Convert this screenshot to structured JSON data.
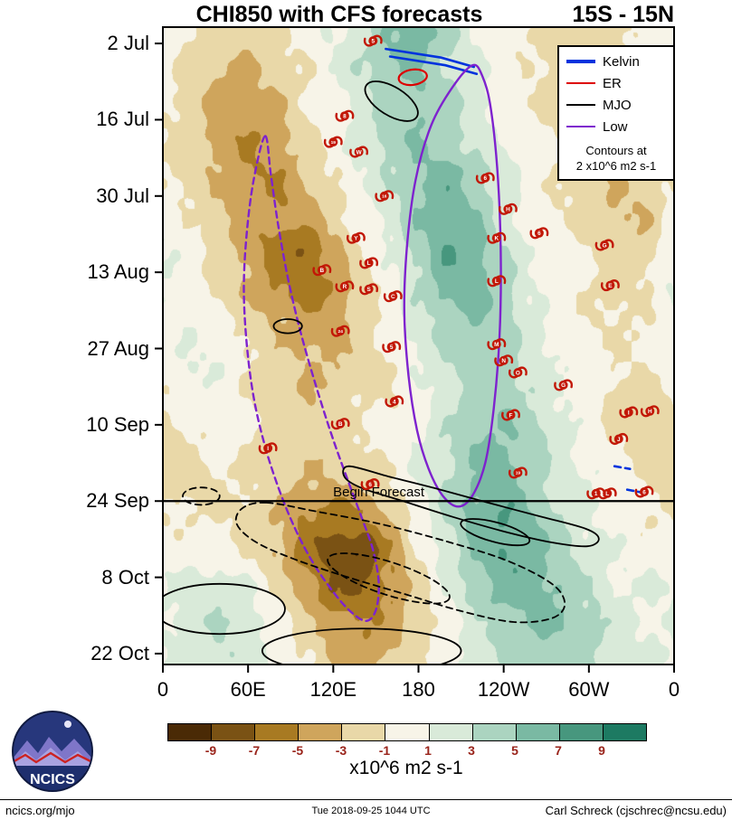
{
  "title": {
    "main": "CHI850 with CFS forecasts",
    "range": "15S - 15N"
  },
  "axes": {
    "y_tick_labels": [
      "2 Jul",
      "16 Jul",
      "30 Jul",
      "13 Aug",
      "27 Aug",
      "10 Sep",
      "24 Sep",
      "8 Oct",
      "22 Oct"
    ],
    "x_tick_labels": [
      "0",
      "60E",
      "120E",
      "180",
      "120W",
      "60W",
      "0"
    ]
  },
  "legend": {
    "items": [
      {
        "label": "Kelvin",
        "color": "#0033dd"
      },
      {
        "label": "ER",
        "color": "#dd0000"
      },
      {
        "label": "MJO",
        "color": "#000000"
      },
      {
        "label": "Low",
        "color": "#7e22ce"
      }
    ],
    "note_line1": "Contours at",
    "note_line2": "2 x10^6 m2 s-1"
  },
  "colorbar": {
    "tick_labels": [
      "-9",
      "-7",
      "-5",
      "-3",
      "-1",
      "1",
      "3",
      "5",
      "7",
      "9"
    ],
    "tick_color": "#99231a",
    "colors": [
      "#4a2a05",
      "#7a5214",
      "#a87a22",
      "#cfa55c",
      "#e9d8a8",
      "#f7f4e8",
      "#d9ead9",
      "#abd4c0",
      "#7ab9a3",
      "#47977e",
      "#1d7a62"
    ],
    "unit_label": "x10^6 m2 s-1"
  },
  "annotations": {
    "begin_forecast_label": "Begin Forecast"
  },
  "footer": {
    "left": "ncics.org/mjo",
    "center": "Tue 2018-09-25 1044 UTC",
    "right": "Carl Schreck (cjschrec@ncsu.edu)"
  },
  "logo": {
    "name": "NCICS"
  },
  "chart_data": {
    "type": "heatmap",
    "title": "CHI850 with CFS forecasts",
    "latitude_band": "15S - 15N",
    "units": "x10^6 m2 s-1",
    "contour_interval_note": "Contours at 2 x10^6 m2 s-1",
    "levels": [
      -9,
      -7,
      -5,
      -3,
      -1,
      1,
      3,
      5,
      7,
      9
    ],
    "x_axis": {
      "label": "longitude",
      "tick_labels": [
        "0",
        "60E",
        "120E",
        "180",
        "120W",
        "60W",
        "0"
      ],
      "tick_lons": [
        0,
        60,
        120,
        180,
        240,
        300,
        360
      ],
      "range_deg": [
        0,
        360
      ]
    },
    "y_axis": {
      "label": "date",
      "tick_labels": [
        "2 Jul",
        "16 Jul",
        "30 Jul",
        "13 Aug",
        "27 Aug",
        "10 Sep",
        "24 Sep",
        "8 Oct",
        "22 Oct"
      ],
      "tick_days": [
        3,
        17,
        31,
        45,
        59,
        73,
        87,
        101,
        115
      ],
      "total_days": 117
    },
    "begin_forecast_day": 87,
    "field": {
      "lon0": 0,
      "dlon": 20,
      "ncols": 19,
      "nrows": 18,
      "values": [
        [
          0,
          -1,
          -2,
          -2,
          -1,
          0,
          1,
          2,
          5,
          6,
          4,
          1,
          0,
          -1,
          -2,
          -2,
          -1,
          -1,
          0
        ],
        [
          0,
          -2,
          -3,
          -3,
          -2,
          -1,
          1,
          3,
          5,
          5,
          3,
          1,
          0,
          -1,
          -2,
          -2,
          -1,
          0,
          0
        ],
        [
          -1,
          -2,
          -4,
          -4,
          -3,
          -1,
          0,
          2,
          4,
          5,
          4,
          2,
          0,
          -1,
          -2,
          -3,
          -2,
          -1,
          -1
        ],
        [
          -1,
          -2,
          -4,
          -5,
          -4,
          -2,
          0,
          2,
          4,
          5,
          4,
          2,
          1,
          0,
          -1,
          -3,
          -3,
          -2,
          -1
        ],
        [
          -1,
          -2,
          -3,
          -5,
          -5,
          -3,
          -1,
          1,
          3,
          5,
          6,
          4,
          2,
          0,
          -1,
          -2,
          -3,
          -2,
          -1
        ],
        [
          0,
          -1,
          -3,
          -4,
          -5,
          -4,
          -2,
          0,
          2,
          5,
          7,
          5,
          2,
          0,
          -1,
          -2,
          -3,
          -3,
          0
        ],
        [
          1,
          0,
          -2,
          -4,
          -6,
          -7,
          -4,
          -1,
          1,
          4,
          7,
          6,
          3,
          1,
          0,
          -1,
          -2,
          -2,
          1
        ],
        [
          1,
          0,
          -2,
          -3,
          -5,
          -6,
          -5,
          -2,
          0,
          3,
          6,
          6,
          4,
          1,
          0,
          -1,
          -2,
          -1,
          1
        ],
        [
          0,
          1,
          0,
          -2,
          -3,
          -4,
          -4,
          -2,
          0,
          2,
          4,
          5,
          4,
          2,
          0,
          -1,
          -1,
          -1,
          0
        ],
        [
          0,
          1,
          1,
          -1,
          -2,
          -3,
          -3,
          -2,
          -1,
          1,
          3,
          4,
          4,
          2,
          1,
          0,
          -1,
          -1,
          0
        ],
        [
          -1,
          0,
          0,
          -1,
          -2,
          -3,
          -2,
          -1,
          -1,
          0,
          2,
          4,
          5,
          3,
          1,
          0,
          -2,
          -2,
          -1
        ],
        [
          -2,
          -1,
          0,
          -1,
          -2,
          -2,
          -2,
          -1,
          0,
          1,
          3,
          5,
          5,
          4,
          2,
          0,
          -1,
          -2,
          -2
        ],
        [
          -2,
          -2,
          -1,
          -1,
          -2,
          -3,
          -3,
          -2,
          -1,
          1,
          3,
          5,
          6,
          4,
          2,
          1,
          0,
          -1,
          -2
        ],
        [
          -1,
          -1,
          -1,
          -2,
          -3,
          -5,
          -6,
          -5,
          -3,
          0,
          3,
          6,
          7,
          5,
          3,
          1,
          0,
          -1,
          -1
        ],
        [
          0,
          0,
          0,
          -1,
          -3,
          -6,
          -8,
          -9,
          -5,
          -1,
          2,
          5,
          7,
          6,
          4,
          2,
          1,
          0,
          0
        ],
        [
          1,
          2,
          2,
          1,
          -1,
          -4,
          -7,
          -7,
          -5,
          -2,
          1,
          4,
          6,
          6,
          5,
          3,
          1,
          1,
          1
        ],
        [
          1,
          2,
          3,
          2,
          0,
          -2,
          -4,
          -5,
          -4,
          -2,
          0,
          2,
          4,
          5,
          5,
          4,
          2,
          1,
          1
        ],
        [
          1,
          2,
          3,
          2,
          1,
          -1,
          -3,
          -4,
          -3,
          -1,
          0,
          2,
          3,
          4,
          4,
          3,
          2,
          1,
          1
        ]
      ]
    },
    "contours": [
      {
        "series": "kelvin",
        "shape": "line",
        "dashed": false,
        "points": [
          [
            157,
            4.0
          ],
          [
            196,
            5.6
          ],
          [
            219,
            7.3
          ]
        ]
      },
      {
        "series": "kelvin",
        "shape": "line",
        "dashed": false,
        "points": [
          [
            160,
            5.4
          ],
          [
            199,
            7.0
          ],
          [
            221,
            8.6
          ]
        ]
      },
      {
        "series": "kelvin",
        "shape": "line",
        "dashed": true,
        "points": [
          [
            318,
            80.6
          ],
          [
            329,
            81.1
          ]
        ]
      },
      {
        "series": "kelvin",
        "shape": "line",
        "dashed": true,
        "points": [
          [
            327,
            84.9
          ],
          [
            339,
            85.5
          ]
        ]
      },
      {
        "series": "er",
        "shape": "ellipse",
        "lon": 176,
        "day": 9.2,
        "rx_deg": 10,
        "ry_days": 1.4,
        "rot": -8,
        "dashed": false
      },
      {
        "series": "low",
        "shape": "polygon",
        "dashed": false,
        "points": [
          [
            218,
            7
          ],
          [
            204,
            11
          ],
          [
            189,
            18
          ],
          [
            178,
            28
          ],
          [
            172,
            40
          ],
          [
            170,
            52
          ],
          [
            173,
            64
          ],
          [
            179,
            74
          ],
          [
            187,
            81
          ],
          [
            197,
            86
          ],
          [
            208,
            88
          ],
          [
            218,
            86
          ],
          [
            227,
            80
          ],
          [
            233,
            70
          ],
          [
            237,
            57
          ],
          [
            238,
            43
          ],
          [
            236,
            28
          ],
          [
            231,
            15
          ],
          [
            225,
            9
          ]
        ]
      },
      {
        "series": "low",
        "shape": "polygon",
        "dashed": true,
        "points": [
          [
            72,
            20
          ],
          [
            64,
            28
          ],
          [
            59,
            38
          ],
          [
            57,
            48
          ],
          [
            59,
            58
          ],
          [
            64,
            68
          ],
          [
            72,
            77
          ],
          [
            82,
            85
          ],
          [
            93,
            92
          ],
          [
            105,
            98
          ],
          [
            118,
            103
          ],
          [
            131,
            107
          ],
          [
            143,
            109
          ],
          [
            150,
            107
          ],
          [
            152,
            102
          ],
          [
            148,
            96
          ],
          [
            140,
            90
          ],
          [
            130,
            83
          ],
          [
            119,
            75
          ],
          [
            108,
            66
          ],
          [
            97,
            56
          ],
          [
            88,
            46
          ],
          [
            81,
            36
          ],
          [
            76,
            27
          ]
        ]
      },
      {
        "series": "mjo",
        "shape": "ellipse",
        "lon": 161,
        "day": 13.6,
        "rx_deg": 21,
        "ry_days": 2.6,
        "rot": 32,
        "dashed": false
      },
      {
        "series": "mjo",
        "shape": "ellipse",
        "lon": 88,
        "day": 54.9,
        "rx_deg": 10,
        "ry_days": 1.3,
        "rot": 0,
        "dashed": false
      },
      {
        "series": "mjo",
        "shape": "ellipse",
        "lon": 27,
        "day": 86.1,
        "rx_deg": 13,
        "ry_days": 1.6,
        "rot": 0,
        "dashed": true
      },
      {
        "series": "mjo",
        "shape": "polygon",
        "dashed": false,
        "points": [
          [
            131,
            80.6
          ],
          [
            159,
            82.5
          ],
          [
            191,
            84.6
          ],
          [
            229,
            87.3
          ],
          [
            267,
            89.9
          ],
          [
            298,
            92.1
          ],
          [
            307,
            93.9
          ],
          [
            299,
            95.3
          ],
          [
            274,
            94.6
          ],
          [
            242,
            92.7
          ],
          [
            204,
            89.9
          ],
          [
            169,
            87.0
          ],
          [
            140,
            84.6
          ],
          [
            128,
            82.6
          ]
        ]
      },
      {
        "series": "mjo",
        "shape": "ellipse",
        "lon": 234,
        "day": 92.7,
        "rx_deg": 25,
        "ry_days": 1.8,
        "rot": 15,
        "dashed": false
      },
      {
        "series": "mjo",
        "shape": "polygon",
        "dashed": true,
        "points": [
          [
            73,
            87.3
          ],
          [
            108,
            88.9
          ],
          [
            153,
            91.2
          ],
          [
            197,
            94.2
          ],
          [
            242,
            97.9
          ],
          [
            274,
            102.2
          ],
          [
            283,
            105.9
          ],
          [
            274,
            108.5
          ],
          [
            247,
            109.2
          ],
          [
            210,
            107.2
          ],
          [
            172,
            104.2
          ],
          [
            133,
            101.2
          ],
          [
            95,
            97.9
          ],
          [
            66,
            94.6
          ],
          [
            52,
            91.2
          ],
          [
            56,
            88.3
          ]
        ]
      },
      {
        "series": "mjo",
        "shape": "ellipse",
        "lon": 159,
        "day": 101.2,
        "rx_deg": 45,
        "ry_days": 3.0,
        "rot": 18,
        "dashed": true
      },
      {
        "series": "mjo",
        "shape": "ellipse",
        "lon": 40,
        "day": 106.8,
        "rx_deg": 46,
        "ry_days": 4.6,
        "rot": 0,
        "dashed": false
      },
      {
        "series": "mjo",
        "shape": "ellipse",
        "lon": 140,
        "day": 114.5,
        "rx_deg": 70,
        "ry_days": 4.1,
        "rot": 0,
        "dashed": false
      }
    ],
    "cyclones": [
      [
        148,
        2.5,
        "5"
      ],
      [
        128,
        16.3,
        "8"
      ],
      [
        120,
        21.1,
        "19"
      ],
      [
        138,
        22.9,
        "W"
      ],
      [
        227,
        27.7,
        "6"
      ],
      [
        156,
        31,
        "16"
      ],
      [
        243,
        33.4,
        "H"
      ],
      [
        265,
        37.8,
        "6"
      ],
      [
        136,
        38.7,
        "Y"
      ],
      [
        235,
        38.7,
        "K"
      ],
      [
        311,
        40,
        "G"
      ],
      [
        145,
        43.3,
        "L"
      ],
      [
        112,
        44.6,
        "B"
      ],
      [
        235,
        46.6,
        "L"
      ],
      [
        128,
        47.6,
        "R"
      ],
      [
        145,
        48.1,
        "S"
      ],
      [
        162,
        49.4,
        "C"
      ],
      [
        315,
        47.4,
        "E"
      ],
      [
        125,
        55.8,
        "24"
      ],
      [
        161,
        58.7,
        "5"
      ],
      [
        235,
        58.2,
        "M"
      ],
      [
        240,
        61.2,
        "N"
      ],
      [
        250,
        63.4,
        "O"
      ],
      [
        282,
        65.7,
        "G"
      ],
      [
        163,
        68.7,
        "4"
      ],
      [
        245,
        71.2,
        "F"
      ],
      [
        328,
        70.7,
        "I"
      ],
      [
        343,
        70.5,
        "H"
      ],
      [
        125,
        72.8,
        "B"
      ],
      [
        74,
        77.3,
        "I"
      ],
      [
        321,
        75.6,
        "J"
      ],
      [
        146,
        83.9,
        "6"
      ],
      [
        250,
        81.8,
        "19"
      ],
      [
        305,
        85.6,
        "1"
      ],
      [
        313,
        85.6,
        "L"
      ],
      [
        339,
        85.3,
        "6"
      ]
    ]
  }
}
